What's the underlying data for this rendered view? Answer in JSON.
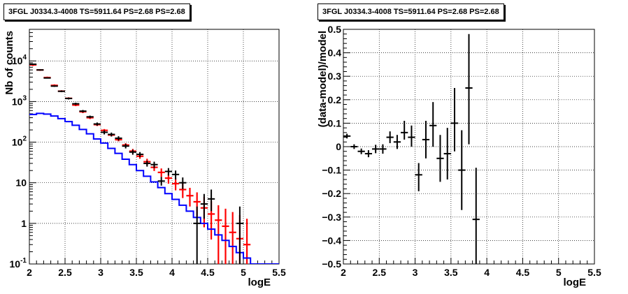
{
  "chart_data": [
    {
      "type": "scatter",
      "title": "3FGL J0334.3-4008 TS=5911.64 PS=2.68 PS=2.68",
      "xlabel": "logE",
      "ylabel": "Nb of counts",
      "yscale": "log",
      "xlim": [
        2,
        5.5
      ],
      "ylim": [
        0.1,
        60000
      ],
      "grid": true,
      "x_ticks": [
        "2",
        "2.5",
        "3",
        "3.5",
        "4",
        "4.5",
        "5",
        "5.5"
      ],
      "y_ticks": [
        {
          "value": 0.1,
          "label": "10",
          "exp": "-1"
        },
        {
          "value": 1,
          "label": "1",
          "exp": ""
        },
        {
          "value": 10,
          "label": "10",
          "exp": ""
        },
        {
          "value": 100,
          "label": "10",
          "exp": "2"
        },
        {
          "value": 1000,
          "label": "10",
          "exp": "3"
        },
        {
          "value": 10000,
          "label": "10",
          "exp": "4"
        }
      ],
      "series": [
        {
          "role": "total model",
          "color": "#ff0000",
          "style": "error-bars",
          "points": [
            {
              "x": 2.05,
              "y": 8000,
              "lo": 7500,
              "hi": 8500
            },
            {
              "x": 2.15,
              "y": 6000,
              "lo": 5700,
              "hi": 6300
            },
            {
              "x": 2.25,
              "y": 3900,
              "lo": 3700,
              "hi": 4100
            },
            {
              "x": 2.35,
              "y": 2500,
              "lo": 2350,
              "hi": 2650
            },
            {
              "x": 2.45,
              "y": 1800,
              "lo": 1700,
              "hi": 1900
            },
            {
              "x": 2.55,
              "y": 1200,
              "lo": 1130,
              "hi": 1270
            },
            {
              "x": 2.65,
              "y": 820,
              "lo": 770,
              "hi": 870
            },
            {
              "x": 2.75,
              "y": 560,
              "lo": 520,
              "hi": 600
            },
            {
              "x": 2.85,
              "y": 400,
              "lo": 370,
              "hi": 430
            },
            {
              "x": 2.95,
              "y": 270,
              "lo": 250,
              "hi": 290
            },
            {
              "x": 3.05,
              "y": 195,
              "lo": 180,
              "hi": 210
            },
            {
              "x": 3.15,
              "y": 150,
              "lo": 138,
              "hi": 162
            },
            {
              "x": 3.25,
              "y": 115,
              "lo": 105,
              "hi": 126
            },
            {
              "x": 3.35,
              "y": 85,
              "lo": 77,
              "hi": 94
            },
            {
              "x": 3.45,
              "y": 60,
              "lo": 53,
              "hi": 68
            },
            {
              "x": 3.55,
              "y": 45,
              "lo": 39,
              "hi": 52
            },
            {
              "x": 3.65,
              "y": 33,
              "lo": 27.5,
              "hi": 39
            },
            {
              "x": 3.75,
              "y": 24,
              "lo": 19.5,
              "hi": 29
            },
            {
              "x": 3.85,
              "y": 18,
              "lo": 14,
              "hi": 22.5
            },
            {
              "x": 3.95,
              "y": 13,
              "lo": 9.5,
              "hi": 17
            },
            {
              "x": 4.05,
              "y": 9.5,
              "lo": 6.5,
              "hi": 13
            },
            {
              "x": 4.15,
              "y": 6.8,
              "lo": 4.2,
              "hi": 9.8
            },
            {
              "x": 4.25,
              "y": 4.8,
              "lo": 2.6,
              "hi": 7.5
            },
            {
              "x": 4.35,
              "y": 3.4,
              "lo": 1.5,
              "hi": 5.8
            },
            {
              "x": 4.45,
              "y": 2.4,
              "lo": 0.8,
              "hi": 4.5
            },
            {
              "x": 4.55,
              "y": 1.7,
              "lo": 0.4,
              "hi": 3.5
            },
            {
              "x": 4.65,
              "y": 1.2,
              "lo": 0.1,
              "hi": 2.8
            },
            {
              "x": 4.75,
              "y": 0.85,
              "lo": 0.1,
              "hi": 2.3
            },
            {
              "x": 4.85,
              "y": 0.6,
              "lo": 0.1,
              "hi": 1.9
            },
            {
              "x": 4.95,
              "y": 0.42,
              "lo": 0.1,
              "hi": 1.6
            },
            {
              "x": 5.05,
              "y": 0.3,
              "lo": 0.1,
              "hi": 1.3
            }
          ]
        },
        {
          "role": "source model",
          "color": "#0000ff",
          "style": "step",
          "edges": [
            2.0,
            2.1,
            2.2,
            2.3,
            2.4,
            2.5,
            2.6,
            2.7,
            2.8,
            2.9,
            3.0,
            3.1,
            3.2,
            3.3,
            3.4,
            3.5,
            3.6,
            3.7,
            3.8,
            3.9,
            4.0,
            4.1,
            4.2,
            4.3,
            4.4,
            4.5,
            4.6,
            4.7,
            4.8,
            4.9,
            5.0,
            5.1,
            5.2,
            5.5
          ],
          "values": [
            480,
            510,
            490,
            440,
            380,
            320,
            260,
            205,
            160,
            120,
            95,
            70,
            53,
            38,
            28,
            20,
            14.5,
            10.5,
            7.6,
            5.4,
            3.9,
            2.8,
            2.0,
            1.4,
            1.0,
            0.72,
            0.52,
            0.38,
            0.27,
            0.19,
            0.14,
            0.1,
            0.1
          ]
        },
        {
          "role": "data",
          "color": "#000000",
          "style": "error-crosses",
          "points": [
            {
              "x": 2.05,
              "y": 8300,
              "lo": 8100,
              "hi": 8500
            },
            {
              "x": 2.15,
              "y": 6000,
              "lo": 5850,
              "hi": 6150
            },
            {
              "x": 2.25,
              "y": 3800,
              "lo": 3680,
              "hi": 3920
            },
            {
              "x": 2.35,
              "y": 2400,
              "lo": 2300,
              "hi": 2500
            },
            {
              "x": 2.45,
              "y": 1790,
              "lo": 1710,
              "hi": 1870
            },
            {
              "x": 2.55,
              "y": 1190,
              "lo": 1125,
              "hi": 1255
            },
            {
              "x": 2.65,
              "y": 880,
              "lo": 825,
              "hi": 935
            },
            {
              "x": 2.75,
              "y": 580,
              "lo": 540,
              "hi": 620
            },
            {
              "x": 2.85,
              "y": 420,
              "lo": 390,
              "hi": 450
            },
            {
              "x": 2.95,
              "y": 280,
              "lo": 255,
              "hi": 305
            },
            {
              "x": 3.05,
              "y": 175,
              "lo": 155,
              "hi": 195
            },
            {
              "x": 3.15,
              "y": 155,
              "lo": 138,
              "hi": 172
            },
            {
              "x": 3.25,
              "y": 125,
              "lo": 110,
              "hi": 140
            },
            {
              "x": 3.35,
              "y": 80,
              "lo": 70,
              "hi": 91
            },
            {
              "x": 3.45,
              "y": 57,
              "lo": 49,
              "hi": 65
            },
            {
              "x": 3.55,
              "y": 50,
              "lo": 43,
              "hi": 57
            },
            {
              "x": 3.65,
              "y": 30,
              "lo": 25,
              "hi": 35
            },
            {
              "x": 3.75,
              "y": 28,
              "lo": 23,
              "hi": 33
            },
            {
              "x": 3.85,
              "y": 11,
              "lo": 8.5,
              "hi": 14
            },
            {
              "x": 3.95,
              "y": 19,
              "lo": 15,
              "hi": 23
            },
            {
              "x": 4.05,
              "y": 16,
              "lo": 12,
              "hi": 20
            },
            {
              "x": 4.15,
              "y": 10,
              "lo": 7,
              "hi": 13.5
            },
            {
              "x": 4.35,
              "y": 1,
              "lo": 0.1,
              "hi": 2.6
            },
            {
              "x": 4.45,
              "y": 3,
              "lo": 1.3,
              "hi": 5.3
            },
            {
              "x": 4.55,
              "y": 4,
              "lo": 2,
              "hi": 6.8
            },
            {
              "x": 4.95,
              "y": 1,
              "lo": 0.1,
              "hi": 2.6
            }
          ]
        }
      ]
    },
    {
      "type": "scatter",
      "title": "3FGL J0334.3-4008 TS=5911.64 PS=2.68 PS=2.68",
      "xlabel": "logE",
      "ylabel": "(data-model)/model",
      "xlim": [
        2,
        5.5
      ],
      "ylim": [
        -0.5,
        0.5
      ],
      "grid": true,
      "x_ticks": [
        "2",
        "2.5",
        "3",
        "3.5",
        "4",
        "4.5",
        "5",
        "5.5"
      ],
      "y_ticks": [
        "−0.5",
        "−0.4",
        "−0.3",
        "−0.2",
        "−0.1",
        "0",
        "0.1",
        "0.2",
        "0.3",
        "0.4",
        "0.5"
      ],
      "y_tick_values": [
        -0.5,
        -0.4,
        -0.3,
        -0.2,
        -0.1,
        0,
        0.1,
        0.2,
        0.3,
        0.4,
        0.5
      ],
      "series": [
        {
          "role": "residuals",
          "color": "#000000",
          "style": "error-crosses",
          "points": [
            {
              "x": 2.05,
              "y": 0.045,
              "lo": 0.035,
              "hi": 0.055
            },
            {
              "x": 2.15,
              "y": 0.0,
              "lo": -0.01,
              "hi": 0.01
            },
            {
              "x": 2.25,
              "y": -0.02,
              "lo": -0.032,
              "hi": -0.008
            },
            {
              "x": 2.35,
              "y": -0.03,
              "lo": -0.045,
              "hi": -0.015
            },
            {
              "x": 2.45,
              "y": -0.01,
              "lo": -0.028,
              "hi": 0.008
            },
            {
              "x": 2.55,
              "y": -0.01,
              "lo": -0.03,
              "hi": 0.01
            },
            {
              "x": 2.65,
              "y": 0.04,
              "lo": 0.015,
              "hi": 0.065
            },
            {
              "x": 2.75,
              "y": 0.02,
              "lo": -0.01,
              "hi": 0.05
            },
            {
              "x": 2.85,
              "y": 0.06,
              "lo": 0.03,
              "hi": 0.11
            },
            {
              "x": 2.95,
              "y": 0.04,
              "lo": 0.0,
              "hi": 0.09
            },
            {
              "x": 3.05,
              "y": -0.12,
              "lo": -0.19,
              "hi": -0.07
            },
            {
              "x": 3.15,
              "y": 0.03,
              "lo": -0.05,
              "hi": 0.11
            },
            {
              "x": 3.25,
              "y": 0.09,
              "lo": 0.0,
              "hi": 0.19
            },
            {
              "x": 3.35,
              "y": -0.05,
              "lo": -0.15,
              "hi": 0.05
            },
            {
              "x": 3.45,
              "y": -0.03,
              "lo": -0.14,
              "hi": 0.08
            },
            {
              "x": 3.55,
              "y": 0.1,
              "lo": -0.02,
              "hi": 0.25
            },
            {
              "x": 3.65,
              "y": -0.1,
              "lo": -0.27,
              "hi": 0.07
            },
            {
              "x": 3.75,
              "y": 0.25,
              "lo": 0.01,
              "hi": 0.48
            },
            {
              "x": 3.85,
              "y": -0.31,
              "lo": -0.5,
              "hi": -0.09
            }
          ]
        }
      ]
    }
  ]
}
